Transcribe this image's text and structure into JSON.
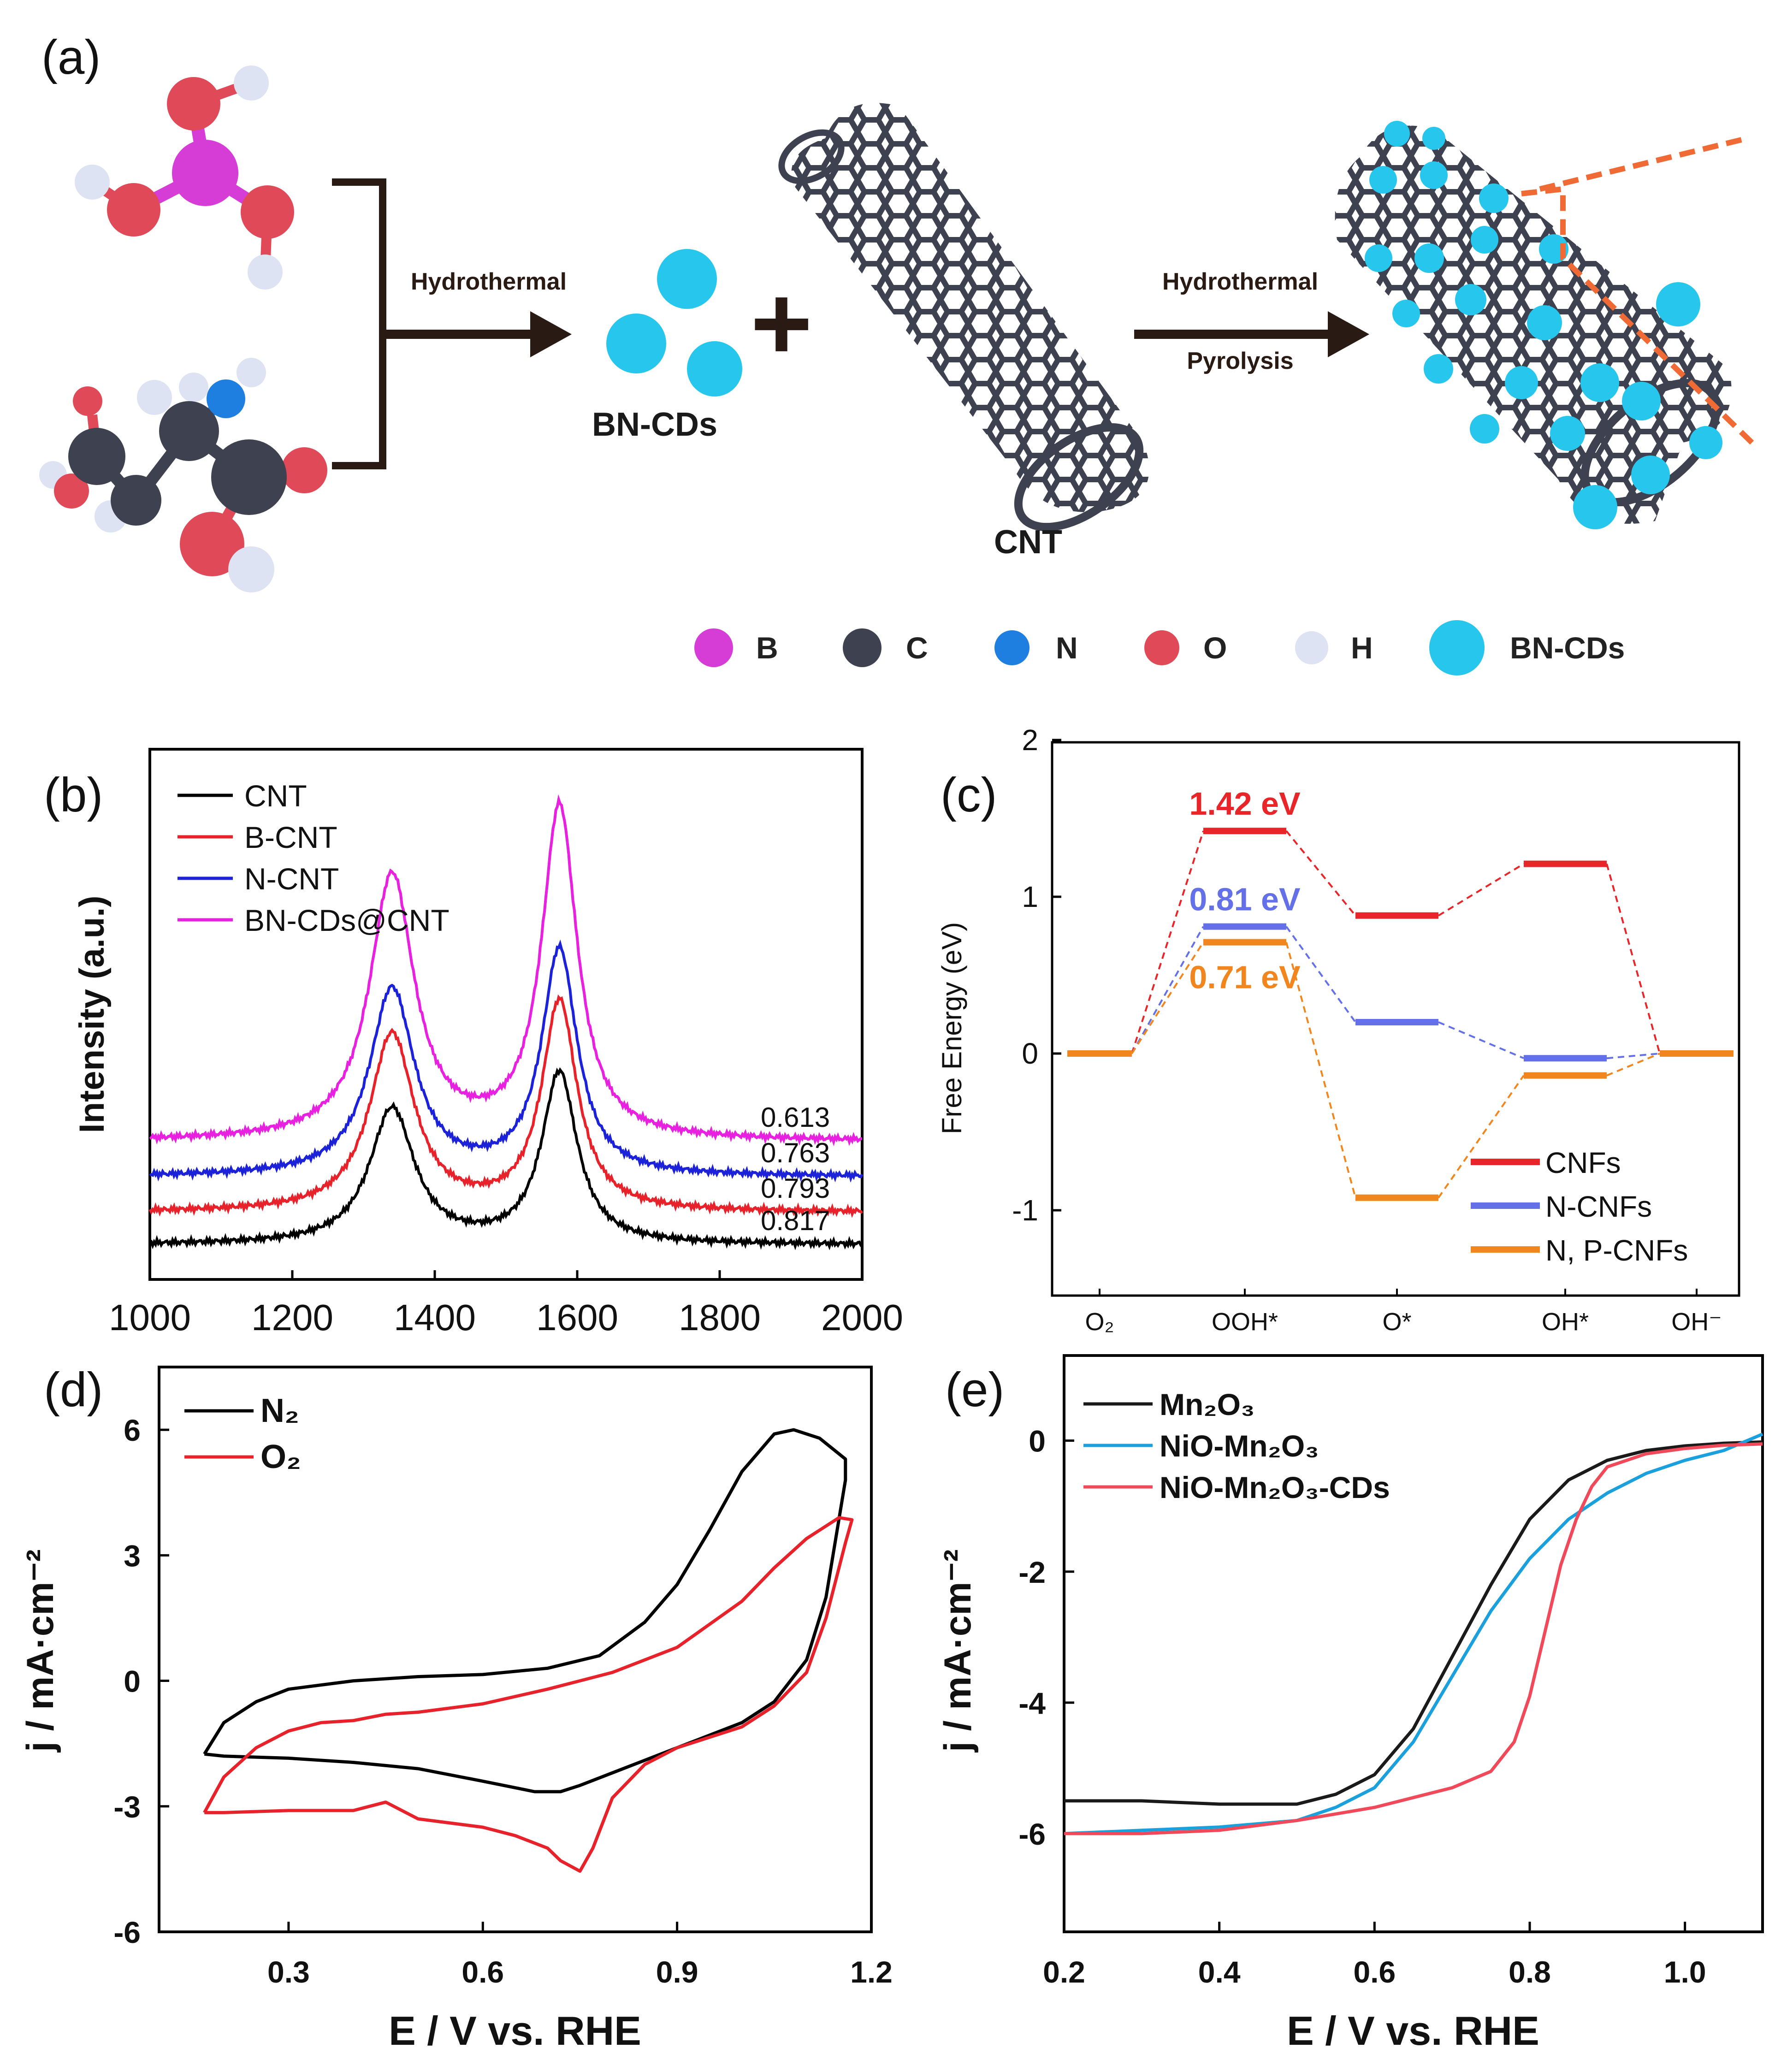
{
  "panel_a": {
    "label": "(a)",
    "step1": "Hydrothermal",
    "step2_line1": "Hydrothermal",
    "step2_line2": "Pyrolysis",
    "product1": "BN-CDs",
    "product2": "CNT",
    "plus": "+",
    "colors": {
      "B": "#d63cd6",
      "C": "#3e4150",
      "N": "#1e7fe0",
      "O": "#e04a58",
      "H": "#dde3f2",
      "BNCD": "#27c6ec",
      "cut": "#f06a35"
    },
    "legend": [
      {
        "name": "B",
        "color": "#d63cd6"
      },
      {
        "name": "C",
        "color": "#3e4150"
      },
      {
        "name": "N",
        "color": "#1e7fe0"
      },
      {
        "name": "O",
        "color": "#e04a58"
      },
      {
        "name": "H",
        "color": "#dde3f2"
      },
      {
        "name": "BN-CDs",
        "color": "#27c6ec"
      }
    ]
  },
  "chart_data": [
    {
      "panel": "(b)",
      "type": "line",
      "title": "",
      "xlabel": "",
      "ylabel": "Intensity (a.u.)",
      "xlim": [
        1000,
        2000
      ],
      "xticks": [
        "1000",
        "1200",
        "1400",
        "1600",
        "1800",
        "2000"
      ],
      "legend_position": "top-left",
      "peaks": {
        "D_band": 1340,
        "G_band": 1575
      },
      "series": [
        {
          "name": "CNT",
          "color": "#000000",
          "baseline": 0.0,
          "d_peak": 0.42,
          "g_peak": 0.53,
          "ratio_label": "0.817"
        },
        {
          "name": "B-CNT",
          "color": "#e8222a",
          "baseline": 0.1,
          "d_peak": 0.55,
          "g_peak": 0.65,
          "ratio_label": "0.793"
        },
        {
          "name": "N-CNT",
          "color": "#1c22d8",
          "baseline": 0.21,
          "d_peak": 0.58,
          "g_peak": 0.7,
          "ratio_label": "0.763"
        },
        {
          "name": "BN-CDs@CNT",
          "color": "#e820e0",
          "baseline": 0.32,
          "d_peak": 0.82,
          "g_peak": 1.03,
          "ratio_label": "0.613"
        }
      ]
    },
    {
      "panel": "(c)",
      "type": "line",
      "title": "",
      "xlabel": "",
      "ylabel": "Free Energy (eV)",
      "ylim": [
        -1.5,
        2
      ],
      "yticks": [
        "-1",
        "0",
        "1",
        "2"
      ],
      "categories": [
        "O₂",
        "OOH*",
        "O*",
        "OH*",
        "OH⁻"
      ],
      "legend_position": "bottom-right",
      "annotations": [
        "1.42 eV",
        "0.81 eV",
        "0.71 eV"
      ],
      "series": [
        {
          "name": "CNFs",
          "color": "#e8262a",
          "values": [
            0,
            1.42,
            0.88,
            1.21,
            0
          ]
        },
        {
          "name": "N-CNFs",
          "color": "#6470e8",
          "values": [
            0,
            0.81,
            0.2,
            -0.03,
            0
          ]
        },
        {
          "name": "N, P-CNFs",
          "color": "#f2861e",
          "values": [
            0,
            0.71,
            -0.92,
            -0.14,
            0
          ]
        }
      ]
    },
    {
      "panel": "(d)",
      "type": "line",
      "title": "",
      "xlabel": "E / V vs. RHE",
      "ylabel": "j / mA·cm⁻²",
      "xlim": [
        0.1,
        1.2
      ],
      "ylim": [
        -6,
        7.5
      ],
      "xticks": [
        "0.3",
        "0.6",
        "0.9",
        "1.2"
      ],
      "yticks": [
        "-6",
        "-3",
        "0",
        "3",
        "6"
      ],
      "legend_position": "top-left",
      "series": [
        {
          "name": "N₂",
          "color": "#000000",
          "x": [
            0.17,
            0.2,
            0.25,
            0.3,
            0.4,
            0.5,
            0.6,
            0.7,
            0.78,
            0.85,
            0.9,
            0.95,
            1.0,
            1.05,
            1.08,
            1.12,
            1.16,
            1.16,
            1.13,
            1.1,
            1.05,
            1.0,
            0.9,
            0.8,
            0.75,
            0.72,
            0.68,
            0.6,
            0.5,
            0.4,
            0.3,
            0.2,
            0.17
          ],
          "y": [
            -1.75,
            -1.0,
            -0.5,
            -0.2,
            0.0,
            0.1,
            0.15,
            0.3,
            0.6,
            1.4,
            2.3,
            3.6,
            5.0,
            5.9,
            6.0,
            5.8,
            5.3,
            4.8,
            2.0,
            0.5,
            -0.5,
            -1.0,
            -1.6,
            -2.2,
            -2.5,
            -2.65,
            -2.65,
            -2.4,
            -2.1,
            -1.95,
            -1.85,
            -1.8,
            -1.75
          ]
        },
        {
          "name": "O₂",
          "color": "#e8222a",
          "x": [
            0.17,
            0.2,
            0.25,
            0.3,
            0.35,
            0.4,
            0.45,
            0.5,
            0.6,
            0.7,
            0.8,
            0.9,
            1.0,
            1.05,
            1.1,
            1.15,
            1.17,
            1.16,
            1.13,
            1.1,
            1.05,
            1.0,
            0.9,
            0.85,
            0.8,
            0.77,
            0.75,
            0.72,
            0.7,
            0.65,
            0.6,
            0.5,
            0.45,
            0.4,
            0.3,
            0.2,
            0.17
          ],
          "y": [
            -3.15,
            -2.3,
            -1.6,
            -1.2,
            -1.0,
            -0.95,
            -0.8,
            -0.75,
            -0.55,
            -0.2,
            0.2,
            0.8,
            1.9,
            2.7,
            3.4,
            3.9,
            3.85,
            3.3,
            1.5,
            0.2,
            -0.6,
            -1.1,
            -1.6,
            -2.0,
            -2.8,
            -4.0,
            -4.55,
            -4.3,
            -4.0,
            -3.7,
            -3.5,
            -3.3,
            -2.9,
            -3.1,
            -3.1,
            -3.15,
            -3.15
          ]
        }
      ]
    },
    {
      "panel": "(e)",
      "type": "line",
      "title": "",
      "xlabel": "E / V vs. RHE",
      "ylabel": "j / mA·cm⁻²",
      "xlim": [
        0.2,
        1.1
      ],
      "ylim": [
        -7.5,
        1.3
      ],
      "xticks": [
        "0.2",
        "0.4",
        "0.6",
        "0.8",
        "1.0"
      ],
      "yticks": [
        "-6",
        "-4",
        "-2",
        "0"
      ],
      "legend_position": "top-left",
      "series": [
        {
          "name": "Mn₂O₃",
          "color": "#1a1a1a",
          "x": [
            0.2,
            0.3,
            0.4,
            0.5,
            0.55,
            0.6,
            0.65,
            0.7,
            0.75,
            0.8,
            0.85,
            0.9,
            0.95,
            1.0,
            1.05,
            1.1
          ],
          "y": [
            -5.5,
            -5.5,
            -5.55,
            -5.55,
            -5.4,
            -5.1,
            -4.4,
            -3.3,
            -2.2,
            -1.2,
            -0.6,
            -0.3,
            -0.15,
            -0.08,
            -0.04,
            -0.02
          ]
        },
        {
          "name": "NiO-Mn₂O₃",
          "color": "#1aa0dc",
          "x": [
            0.2,
            0.3,
            0.4,
            0.5,
            0.55,
            0.6,
            0.65,
            0.7,
            0.75,
            0.8,
            0.85,
            0.9,
            0.95,
            1.0,
            1.05,
            1.1
          ],
          "y": [
            -6.0,
            -5.95,
            -5.9,
            -5.8,
            -5.6,
            -5.3,
            -4.6,
            -3.6,
            -2.6,
            -1.8,
            -1.2,
            -0.8,
            -0.5,
            -0.3,
            -0.15,
            0.1
          ]
        },
        {
          "name": "NiO-Mn₂O₃-CDs",
          "color": "#f04a5a",
          "x": [
            0.2,
            0.3,
            0.4,
            0.5,
            0.55,
            0.6,
            0.65,
            0.7,
            0.75,
            0.78,
            0.8,
            0.82,
            0.84,
            0.86,
            0.88,
            0.9,
            0.95,
            1.0,
            1.05,
            1.1
          ],
          "y": [
            -6.0,
            -6.0,
            -5.95,
            -5.8,
            -5.7,
            -5.6,
            -5.45,
            -5.3,
            -5.05,
            -4.6,
            -3.9,
            -2.9,
            -1.9,
            -1.2,
            -0.7,
            -0.4,
            -0.2,
            -0.12,
            -0.07,
            -0.05
          ]
        }
      ]
    }
  ]
}
